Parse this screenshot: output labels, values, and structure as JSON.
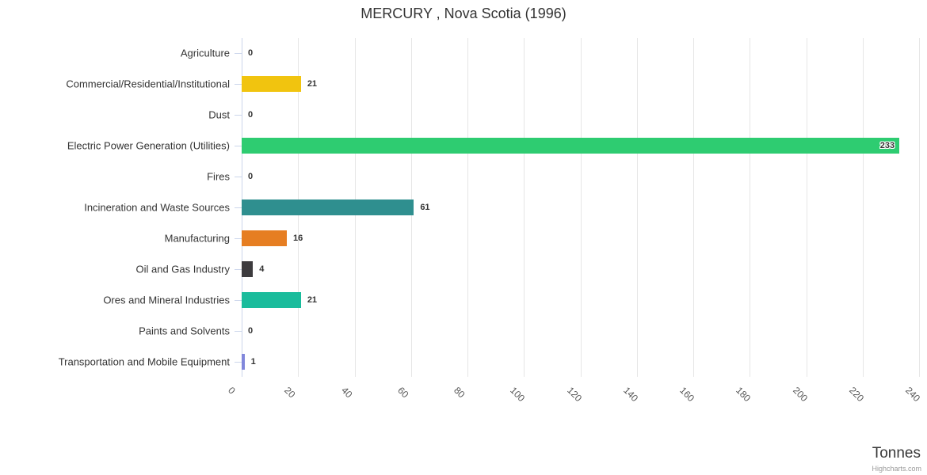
{
  "title": "MERCURY , Nova Scotia (1996)",
  "credit": "Highcharts.com",
  "chart_data": {
    "type": "bar",
    "orientation": "horizontal",
    "title": "MERCURY , Nova Scotia (1996)",
    "xlabel": "Tonnes",
    "ylabel": "",
    "xlim": [
      0,
      240
    ],
    "tick_interval": 20,
    "ticks": [
      0,
      20,
      40,
      60,
      80,
      100,
      120,
      140,
      160,
      180,
      200,
      220,
      240
    ],
    "grid": true,
    "legend": false,
    "categories": [
      "Agriculture",
      "Commercial/Residential/Institutional",
      "Dust",
      "Electric Power Generation (Utilities)",
      "Fires",
      "Incineration and Waste Sources",
      "Manufacturing",
      "Oil and Gas Industry",
      "Ores and Mineral Industries",
      "Paints and Solvents",
      "Transportation and Mobile Equipment"
    ],
    "values": [
      0,
      21,
      0,
      233,
      0,
      61,
      16,
      4,
      21,
      0,
      1
    ],
    "data_labels": [
      "0",
      "21",
      "0",
      "233",
      "0",
      "61",
      "16",
      "4",
      "21",
      "0",
      "1"
    ],
    "bar_colors": [
      null,
      "#f1c40f",
      null,
      "#2ecc71",
      null,
      "#2f8f8f",
      "#e67e22",
      "#3d3b3e",
      "#1abc9c",
      null,
      "#8187db"
    ]
  },
  "colors": {
    "title_text": "#333333",
    "category_label": "#333333",
    "tick_label": "#555555",
    "data_label": "#333333",
    "gridline": "#e6e6e6",
    "axis_line": "#ccd6eb",
    "axis_title_text": "#383838",
    "credit_text": "#999999",
    "background": "#ffffff"
  }
}
